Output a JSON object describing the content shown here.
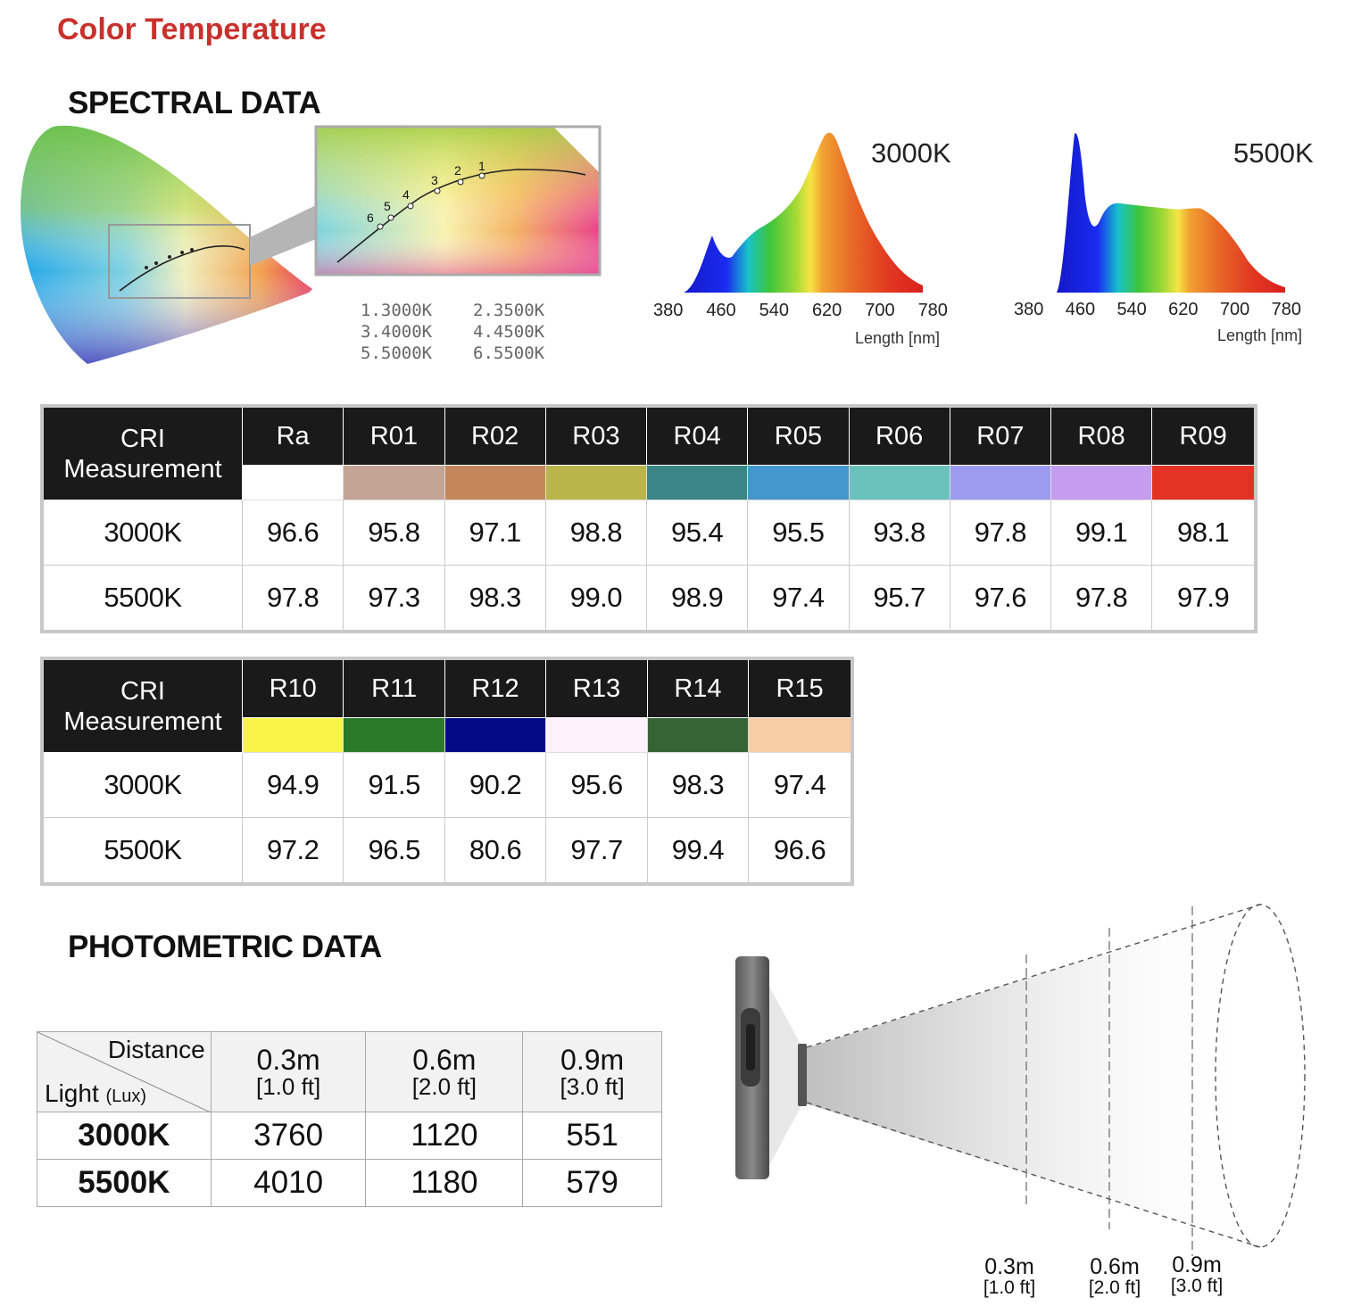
{
  "title": "Color Temperature",
  "spectral": {
    "heading": "SPECTRAL DATA",
    "legend": [
      [
        "1.3000K",
        "2.3500K"
      ],
      [
        "3.4000K",
        "4.4500K"
      ],
      [
        "5.5000K",
        "6.5500K"
      ]
    ],
    "chart_labels": [
      "1",
      "2",
      "3",
      "4",
      "5",
      "6"
    ],
    "charts": [
      {
        "label": "3000K",
        "ticks": [
          "380",
          "460",
          "540",
          "620",
          "700",
          "780"
        ],
        "unit": "Length [nm]"
      },
      {
        "label": "5500K",
        "ticks": [
          "380",
          "460",
          "540",
          "620",
          "700",
          "780"
        ],
        "unit": "Length [nm]"
      }
    ]
  },
  "cri1": {
    "header": [
      "CRI",
      "Measurement"
    ],
    "cols": [
      "Ra",
      "R01",
      "R02",
      "R03",
      "R04",
      "R05",
      "R06",
      "R07",
      "R08",
      "R09"
    ],
    "swatches": [
      "#ffffff",
      "#c4a595",
      "#c4875a",
      "#bab54a",
      "#3a8585",
      "#4497cc",
      "#6bc2bd",
      "#9d9bf0",
      "#c59cee",
      "#e23325"
    ],
    "rows": [
      {
        "label": "3000K",
        "values": [
          "96.6",
          "95.8",
          "97.1",
          "98.8",
          "95.4",
          "95.5",
          "93.8",
          "97.8",
          "99.1",
          "98.1"
        ]
      },
      {
        "label": "5500K",
        "values": [
          "97.8",
          "97.3",
          "98.3",
          "99.0",
          "98.9",
          "97.4",
          "95.7",
          "97.6",
          "97.8",
          "97.9"
        ]
      }
    ]
  },
  "cri2": {
    "header": [
      "CRI",
      "Measurement"
    ],
    "cols": [
      "R10",
      "R11",
      "R12",
      "R13",
      "R14",
      "R15"
    ],
    "swatches": [
      "#f8f548",
      "#2a7a2a",
      "#020b85",
      "#fdf2fb",
      "#356535",
      "#f7cda5"
    ],
    "rows": [
      {
        "label": "3000K",
        "values": [
          "94.9",
          "91.5",
          "90.2",
          "95.6",
          "98.3",
          "97.4"
        ]
      },
      {
        "label": "5500K",
        "values": [
          "97.2",
          "96.5",
          "80.6",
          "97.7",
          "99.4",
          "96.6"
        ]
      }
    ]
  },
  "photometric": {
    "heading": "PHOTOMETRIC DATA",
    "corner_top": "Distance",
    "corner_bottom_main": "Light",
    "corner_bottom_unit": "(Lux)",
    "distances": [
      {
        "m": "0.3m",
        "ft": "[1.0 ft]"
      },
      {
        "m": "0.6m",
        "ft": "[2.0 ft]"
      },
      {
        "m": "0.9m",
        "ft": "[3.0 ft]"
      }
    ],
    "rows": [
      {
        "label": "3000K",
        "values": [
          "3760",
          "1120",
          "551"
        ]
      },
      {
        "label": "5500K",
        "values": [
          "4010",
          "1180",
          "579"
        ]
      }
    ]
  }
}
